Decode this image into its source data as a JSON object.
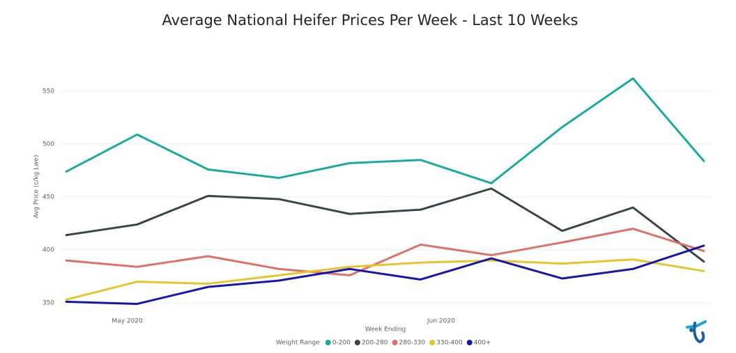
{
  "chart_data": {
    "type": "line",
    "title": "Average National Heifer Prices Per Week - Last 10 Weeks",
    "x_label": "Week Ending",
    "y_label": "Avg Price (c/kg Lwe)",
    "legend_title": "Weight Range",
    "x": [
      0,
      1,
      2,
      3,
      4,
      5,
      6,
      7,
      8,
      9
    ],
    "xlim": [
      -0.1,
      9.1
    ],
    "xticks": [
      {
        "value": 0.86,
        "label": "May 2020"
      },
      {
        "value": 5.29,
        "label": "Jun 2020"
      }
    ],
    "ylim": [
      346,
      570
    ],
    "yticks": [
      350,
      400,
      450,
      500,
      550
    ],
    "grid": true,
    "legend": "bottom",
    "series": [
      {
        "name": "0-200",
        "color": "#1aaba0",
        "values": [
          474,
          509,
          476,
          468,
          482,
          485,
          463,
          516,
          562,
          484
        ]
      },
      {
        "name": "200-280",
        "color": "#374649",
        "values": [
          414,
          424,
          451,
          448,
          434,
          438,
          458,
          418,
          440,
          389
        ]
      },
      {
        "name": "280-330",
        "color": "#e0706a",
        "values": [
          390,
          384,
          394,
          382,
          376,
          405,
          395,
          407,
          420,
          399
        ]
      },
      {
        "name": "330-400",
        "color": "#e6c52c",
        "values": [
          353,
          370,
          368,
          376,
          384,
          388,
          390,
          387,
          391,
          380
        ]
      },
      {
        "name": "400+",
        "color": "#1515b0",
        "values": [
          351,
          349,
          365,
          371,
          382,
          372,
          392,
          373,
          382,
          404
        ]
      }
    ]
  }
}
